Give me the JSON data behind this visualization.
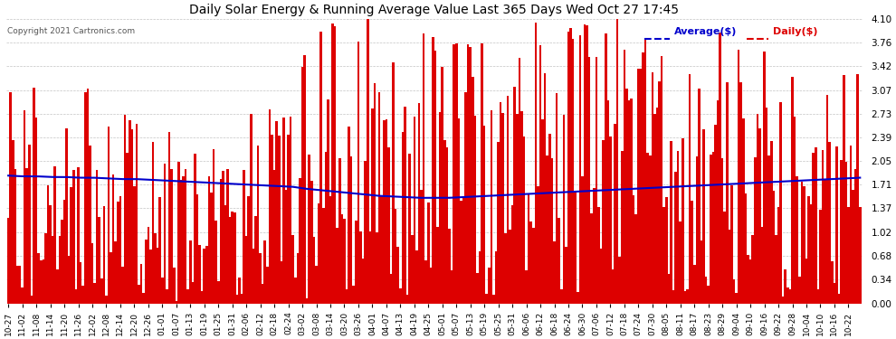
{
  "title": "Daily Solar Energy & Running Average Value Last 365 Days Wed Oct 27 17:45",
  "copyright": "Copyright 2021 Cartronics.com",
  "legend_avg": "Average($)",
  "legend_daily": "Daily($)",
  "ylim": [
    0.0,
    4.1
  ],
  "yticks": [
    0.0,
    0.34,
    0.68,
    1.02,
    1.37,
    1.71,
    2.05,
    2.39,
    2.73,
    3.07,
    3.42,
    3.76,
    4.1
  ],
  "bar_color": "#dd0000",
  "avg_color": "#0000cc",
  "background_color": "#ffffff",
  "grid_color": "#aaaaaa",
  "title_color": "#000000",
  "copyright_color": "#555555",
  "x_tick_labels": [
    "10-27",
    "11-02",
    "11-08",
    "11-14",
    "11-20",
    "11-26",
    "12-02",
    "12-08",
    "12-14",
    "12-20",
    "12-26",
    "01-01",
    "01-07",
    "01-13",
    "01-19",
    "01-25",
    "01-31",
    "02-06",
    "02-12",
    "02-18",
    "02-24",
    "03-02",
    "03-08",
    "03-14",
    "03-20",
    "03-26",
    "04-01",
    "04-07",
    "04-13",
    "04-19",
    "04-25",
    "05-01",
    "05-07",
    "05-13",
    "05-19",
    "05-25",
    "05-31",
    "06-06",
    "06-12",
    "06-18",
    "06-24",
    "06-30",
    "07-06",
    "07-12",
    "07-18",
    "07-24",
    "07-30",
    "08-05",
    "08-11",
    "08-17",
    "08-23",
    "08-29",
    "09-04",
    "09-10",
    "09-16",
    "09-22",
    "09-28",
    "10-04",
    "10-10",
    "10-16",
    "10-22"
  ],
  "num_days": 366,
  "seed": 42,
  "avg_values": [
    1.84,
    1.83,
    1.83,
    1.82,
    1.82,
    1.81,
    1.81,
    1.8,
    1.79,
    1.79,
    1.78,
    1.77,
    1.76,
    1.75,
    1.74,
    1.73,
    1.72,
    1.71,
    1.7,
    1.69,
    1.68,
    1.65,
    1.63,
    1.61,
    1.59,
    1.57,
    1.55,
    1.54,
    1.53,
    1.52,
    1.52,
    1.52,
    1.53,
    1.54,
    1.55,
    1.56,
    1.57,
    1.58,
    1.59,
    1.6,
    1.61,
    1.62,
    1.63,
    1.64,
    1.65,
    1.66,
    1.67,
    1.68,
    1.69,
    1.7,
    1.71,
    1.72,
    1.73,
    1.74,
    1.75,
    1.76,
    1.77,
    1.78,
    1.79,
    1.8,
    1.81
  ]
}
